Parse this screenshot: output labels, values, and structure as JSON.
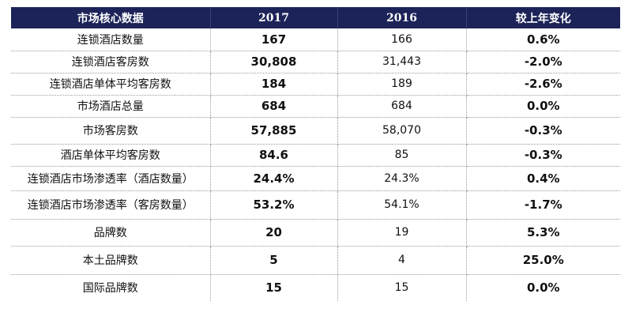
{
  "table": {
    "headers": [
      "市场核心数据",
      "2017",
      "2016",
      "较上年变化"
    ],
    "rows": [
      {
        "label": "连锁酒店数量",
        "v2017": "167",
        "v2016": "166",
        "change": "0.6%"
      },
      {
        "label": "连锁酒店客房数",
        "v2017": "30,808",
        "v2016": "31,443",
        "change": "-2.0%"
      },
      {
        "label": "连锁酒店单体平均客房数",
        "v2017": "184",
        "v2016": "189",
        "change": "-2.6%"
      },
      {
        "label": "市场酒店总量",
        "v2017": "684",
        "v2016": "684",
        "change": "0.0%"
      },
      {
        "label": "市场客房数",
        "v2017": "57,885",
        "v2016": "58,070",
        "change": "-0.3%"
      },
      {
        "label": "酒店单体平均客房数",
        "v2017": "84.6",
        "v2016": "85",
        "change": "-0.3%"
      },
      {
        "label": "连锁酒店市场渗透率（酒店数量）",
        "v2017": "24.4%",
        "v2016": "24.3%",
        "change": "0.4%"
      },
      {
        "label": "连锁酒店市场渗透率（客房数量）",
        "v2017": "53.2%",
        "v2016": "54.1%",
        "change": "-1.7%"
      },
      {
        "label": "品牌数",
        "v2017": "20",
        "v2016": "19",
        "change": "5.3%"
      },
      {
        "label": "本土品牌数",
        "v2017": "5",
        "v2016": "4",
        "change": "25.0%"
      },
      {
        "label": "国际品牌数",
        "v2017": "15",
        "v2016": "15",
        "change": "0.0%"
      }
    ]
  }
}
